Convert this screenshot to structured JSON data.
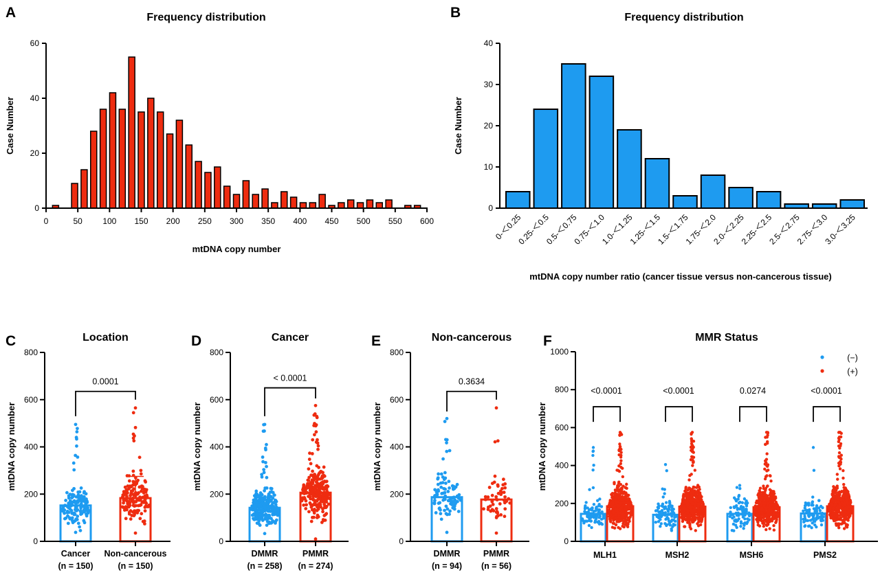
{
  "colors": {
    "red": "#EE2C10",
    "blue": "#1E9BF0",
    "axis": "#000000"
  },
  "chart_data": [
    {
      "panel": "A",
      "type": "bar",
      "title": "Frequency distribution",
      "xlabel": "mtDNA copy number",
      "ylabel": "Case Number",
      "xlim": [
        0,
        600
      ],
      "ylim": [
        0,
        60
      ],
      "xticks": [
        "0",
        "50",
        "100",
        "150",
        "200",
        "250",
        "300",
        "350",
        "400",
        "450",
        "500",
        "550",
        "600"
      ],
      "yticks": [
        "0",
        "20",
        "40",
        "60"
      ],
      "x": [
        15,
        45,
        60,
        75,
        90,
        105,
        120,
        135,
        150,
        165,
        180,
        195,
        210,
        225,
        240,
        255,
        270,
        285,
        300,
        315,
        330,
        345,
        360,
        375,
        390,
        405,
        420,
        435,
        450,
        465,
        480,
        495,
        510,
        525,
        540,
        570,
        585
      ],
      "values": [
        1,
        9,
        14,
        28,
        36,
        42,
        36,
        55,
        35,
        40,
        35,
        27,
        32,
        23,
        17,
        13,
        15,
        8,
        5,
        10,
        5,
        7,
        2,
        6,
        4,
        2,
        2,
        5,
        1,
        2,
        3,
        2,
        3,
        2,
        3,
        1,
        1
      ],
      "color": "red",
      "grid": false
    },
    {
      "panel": "B",
      "type": "bar",
      "title": "Frequency distribution",
      "xlabel": "mtDNA copy number ratio (cancer tissue versus non-cancerous tissue)",
      "ylabel": "Case Number",
      "ylim": [
        0,
        40
      ],
      "yticks": [
        "0",
        "10",
        "20",
        "30",
        "40"
      ],
      "categories": [
        "0-＜0.25",
        "0.25-＜0.5",
        "0.5-＜0.75",
        "0.75-＜1.0",
        "1.0-＜1.25",
        "1.25-＜1.5",
        "1.5-＜1.75",
        "1.75-＜2.0",
        "2.0-＜2.25",
        "2.25-＜2.5",
        "2.5-＜2.75",
        "2.75-＜3.0",
        "3.0-＜3.25"
      ],
      "values": [
        4,
        24,
        35,
        32,
        19,
        12,
        3,
        8,
        5,
        4,
        1,
        1,
        2
      ],
      "color": "blue",
      "grid": false
    },
    {
      "panel": "C",
      "type": "bar+scatter",
      "title": "Location",
      "ylabel": "mtDNA  copy number",
      "ylim": [
        0,
        800
      ],
      "yticks": [
        "0",
        "200",
        "400",
        "600",
        "800"
      ],
      "groups": [
        {
          "label": "Cancer",
          "n_label": "(n = 150)",
          "n": 150,
          "mean": 152,
          "max": 495,
          "min": 38,
          "color": "blue"
        },
        {
          "label": "Non-cancerous",
          "n_label": "(n = 150)",
          "n": 150,
          "mean": 183,
          "max": 565,
          "min": 35,
          "color": "red",
          "error_top": 275
        }
      ],
      "comparisons": [
        {
          "p": "0.0001",
          "bracket_y": 635,
          "left_leg": 530,
          "right_leg": 600
        }
      ]
    },
    {
      "panel": "D",
      "type": "bar+scatter",
      "title": "Cancer",
      "ylabel": "mtDNA  copy number",
      "ylim": [
        0,
        800
      ],
      "yticks": [
        "0",
        "200",
        "400",
        "600",
        "800"
      ],
      "groups": [
        {
          "label": "DMMR",
          "n_label": "(n = 258)",
          "n": 258,
          "mean": 142,
          "max": 495,
          "min": 33,
          "color": "blue"
        },
        {
          "label": "PMMR",
          "n_label": "(n = 274)",
          "n": 274,
          "mean": 206,
          "max": 575,
          "min": 10,
          "color": "red"
        }
      ],
      "comparisons": [
        {
          "p": "< 0.0001",
          "bracket_y": 650,
          "left_leg": 530,
          "right_leg": 605
        }
      ]
    },
    {
      "panel": "E",
      "type": "bar+scatter",
      "title": "Non-cancerous",
      "ylabel": "mtDNA  copy number",
      "ylim": [
        0,
        800
      ],
      "yticks": [
        "0",
        "200",
        "400",
        "600",
        "800"
      ],
      "groups": [
        {
          "label": "DMMR",
          "n_label": "(n = 94)",
          "n": 94,
          "mean": 187,
          "max": 520,
          "min": 38,
          "color": "blue"
        },
        {
          "label": "PMMR",
          "n_label": "(n = 56)",
          "n": 56,
          "mean": 177,
          "max": 565,
          "min": 35,
          "color": "red"
        }
      ],
      "comparisons": [
        {
          "p": "0.3634",
          "bracket_y": 635,
          "left_leg": 550,
          "right_leg": 600
        }
      ]
    },
    {
      "panel": "F",
      "type": "grouped bar+scatter",
      "title": "MMR Status",
      "ylabel": "mtDNA  copy number",
      "ylim": [
        0,
        1000
      ],
      "yticks": [
        "0",
        "200",
        "400",
        "600",
        "800",
        "1000"
      ],
      "legend": {
        "position": "top-right",
        "entries": [
          {
            "name": "(−)",
            "color": "blue"
          },
          {
            "name": "(+)",
            "color": "red"
          }
        ]
      },
      "categories": [
        "MLH1",
        "MSH2",
        "MSH6",
        "PMS2"
      ],
      "series": [
        {
          "name": "(−)",
          "color": "blue",
          "means": [
            145,
            140,
            145,
            147
          ],
          "max": [
            495,
            405,
            295,
            495
          ]
        },
        {
          "name": "(+)",
          "color": "red",
          "means": [
            185,
            183,
            180,
            185
          ],
          "max": [
            575,
            575,
            575,
            575
          ]
        }
      ],
      "comparisons": [
        {
          "p": "<0.0001",
          "bracket_y": 710,
          "leg": 630
        },
        {
          "p": "<0.0001",
          "bracket_y": 710,
          "leg": 630
        },
        {
          "p": "0.0274",
          "bracket_y": 710,
          "leg": 630
        },
        {
          "p": "<0.0001",
          "bracket_y": 710,
          "leg": 630
        }
      ]
    }
  ]
}
